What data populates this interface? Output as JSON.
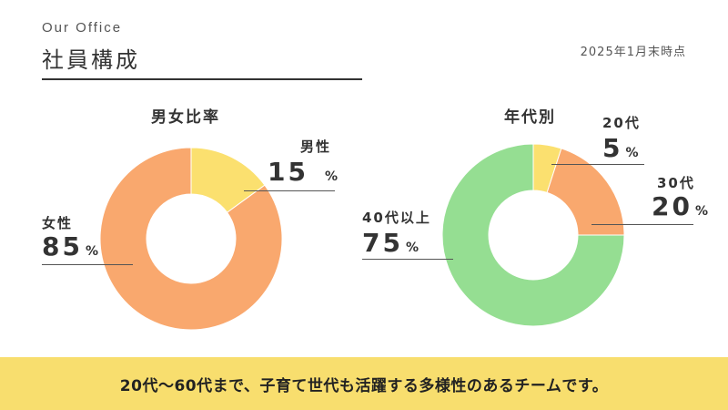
{
  "header": {
    "eyebrow": "Our Office",
    "title": "社員構成",
    "date": "2025年1月末時点"
  },
  "chart_data": [
    {
      "type": "pie",
      "title": "男女比率",
      "unit": "%",
      "slices": [
        {
          "label": "男性",
          "value": 15,
          "color": "#fbe06f"
        },
        {
          "label": "女性",
          "value": 85,
          "color": "#f9a86e"
        }
      ]
    },
    {
      "type": "pie",
      "title": "年代別",
      "unit": "%",
      "slices": [
        {
          "label": "20代",
          "value": 5,
          "color": "#fbe06f"
        },
        {
          "label": "30代",
          "value": 20,
          "color": "#f9a86e"
        },
        {
          "label": "40代以上",
          "value": 75,
          "color": "#95de92"
        }
      ]
    }
  ],
  "footer": {
    "text": "20代〜60代まで、子育て世代も活躍する多様性のあるチームです。",
    "color": "#f8de6e"
  }
}
